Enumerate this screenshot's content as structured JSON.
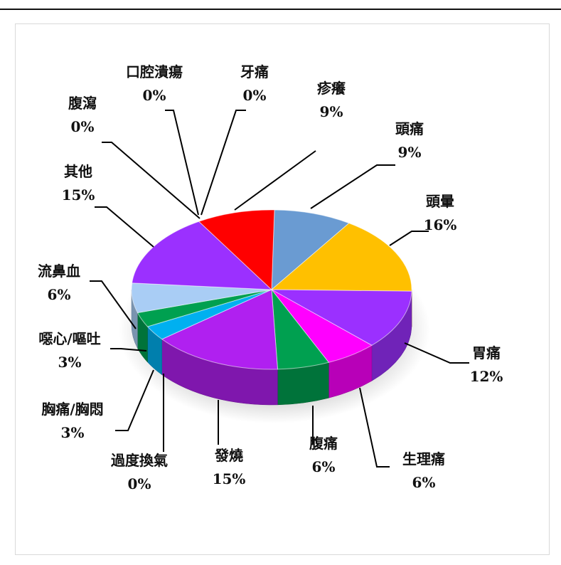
{
  "chart_data": {
    "type": "pie",
    "categories": [
      "疹癢",
      "頭痛",
      "頭暈",
      "胃痛",
      "生理痛",
      "腹痛",
      "發燒",
      "過度換氣",
      "胸痛/胸悶",
      "噁心/嘔吐",
      "流鼻血",
      "其他",
      "腹瀉",
      "口腔潰瘍",
      "牙痛"
    ],
    "values": [
      9,
      9,
      16,
      12,
      6,
      6,
      15,
      0,
      3,
      3,
      6,
      15,
      0,
      0,
      0
    ],
    "value_labels": [
      "9%",
      "9%",
      "16%",
      "12%",
      "6%",
      "6%",
      "15%",
      "0%",
      "3%",
      "3%",
      "6%",
      "15%",
      "0%",
      "0%",
      "0%"
    ],
    "colors": [
      "#ff0000",
      "#6a9bd2",
      "#ffc000",
      "#9b30ff",
      "#ff00ff",
      "#00a050",
      "#b020f0",
      "#1e90ff",
      "#00b0f0",
      "#00a050",
      "#a9cdf5",
      "#9b30ff",
      "#9b30ff",
      "#9b30ff",
      "#9b30ff"
    ],
    "title": "",
    "legend": "none"
  }
}
